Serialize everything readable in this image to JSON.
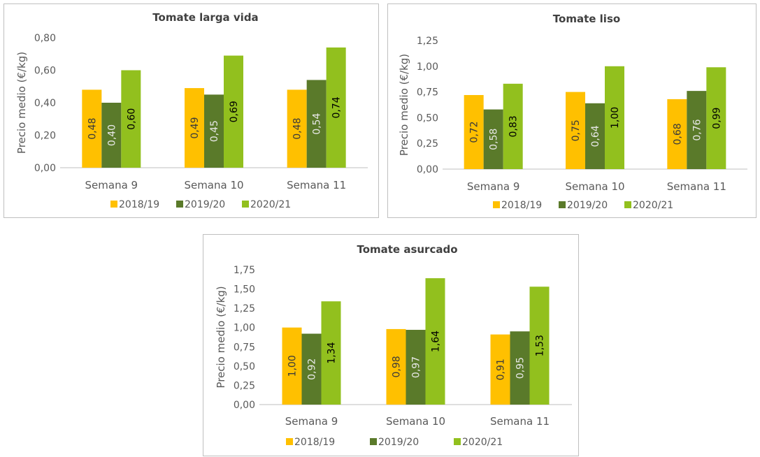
{
  "chart_data": [
    {
      "type": "bar",
      "title": "Tomate larga vida",
      "ylabel": "Precio medio (€/kg)",
      "categories": [
        "Semana 9",
        "Semana 10",
        "Semana 11"
      ],
      "ylim": [
        0,
        0.8
      ],
      "yticks": [
        "0,00",
        "0,20",
        "0,40",
        "0,60",
        "0,80"
      ],
      "yticks_values": [
        0,
        0.2,
        0.4,
        0.6,
        0.8
      ],
      "series": [
        {
          "name": "2018/19",
          "values": [
            0.48,
            0.49,
            0.48
          ],
          "labels": [
            "0,48",
            "0,49",
            "0,48"
          ]
        },
        {
          "name": "2019/20",
          "values": [
            0.4,
            0.45,
            0.54
          ],
          "labels": [
            "0,40",
            "0,45",
            "0,54"
          ]
        },
        {
          "name": "2020/21",
          "values": [
            0.6,
            0.69,
            0.74
          ],
          "labels": [
            "0,60",
            "0,69",
            "0,74"
          ]
        }
      ],
      "legend": "bottom",
      "grid": false
    },
    {
      "type": "bar",
      "title": "Tomate liso",
      "ylabel": "Precio medio (€/kg)",
      "categories": [
        "Semana 9",
        "Semana 10",
        "Semana 11"
      ],
      "ylim": [
        0,
        1.25
      ],
      "yticks": [
        "0,00",
        "0,25",
        "0,50",
        "0,75",
        "1,00",
        "1,25"
      ],
      "yticks_values": [
        0,
        0.25,
        0.5,
        0.75,
        1.0,
        1.25
      ],
      "series": [
        {
          "name": "2018/19",
          "values": [
            0.72,
            0.75,
            0.68
          ],
          "labels": [
            "0,72",
            "0,75",
            "0,68"
          ]
        },
        {
          "name": "2019/20",
          "values": [
            0.58,
            0.64,
            0.76
          ],
          "labels": [
            "0,58",
            "0,64",
            "0,76"
          ]
        },
        {
          "name": "2020/21",
          "values": [
            0.83,
            1.0,
            0.99
          ],
          "labels": [
            "0,83",
            "1,00",
            "0,99"
          ]
        }
      ],
      "legend": "bottom",
      "grid": false
    },
    {
      "type": "bar",
      "title": "Tomate asurcado",
      "ylabel": "Precio medio (€/kg)",
      "categories": [
        "Semana 9",
        "Semana 10",
        "Semana 11"
      ],
      "ylim": [
        0,
        1.75
      ],
      "yticks": [
        "0,00",
        "0,25",
        "0,50",
        "0,75",
        "1,00",
        "1,25",
        "1,50",
        "1,75"
      ],
      "yticks_values": [
        0,
        0.25,
        0.5,
        0.75,
        1.0,
        1.25,
        1.5,
        1.75
      ],
      "series": [
        {
          "name": "2018/19",
          "values": [
            1.0,
            0.98,
            0.91
          ],
          "labels": [
            "1,00",
            "0,98",
            "0,91"
          ]
        },
        {
          "name": "2019/20",
          "values": [
            0.92,
            0.97,
            0.95
          ],
          "labels": [
            "0,92",
            "0,97",
            "0,95"
          ]
        },
        {
          "name": "2020/21",
          "values": [
            1.34,
            1.64,
            1.53
          ],
          "labels": [
            "1,34",
            "1,64",
            "1,53"
          ]
        }
      ],
      "legend": "bottom",
      "grid": false
    }
  ],
  "colors": {
    "series": [
      "#ffc000",
      "#5a7a2a",
      "#92c01e"
    ],
    "label_text": [
      "#3a3a3a",
      "#e8e8e8",
      "#000000"
    ],
    "axis": "#bfbfbf"
  }
}
